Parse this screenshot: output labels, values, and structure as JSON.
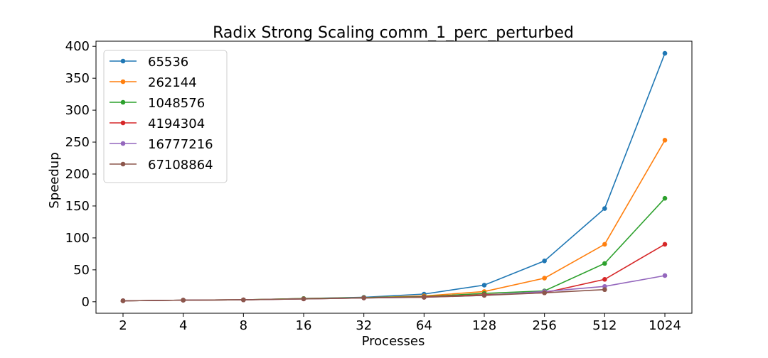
{
  "chart_data": {
    "type": "line",
    "title": "Radix Strong Scaling comm_1_perc_perturbed",
    "xlabel": "Processes",
    "ylabel": "Speedup",
    "categories": [
      "2",
      "4",
      "8",
      "16",
      "32",
      "64",
      "128",
      "256",
      "512",
      "1024"
    ],
    "ylim": [
      -18,
      408
    ],
    "yticks": [
      0,
      50,
      100,
      150,
      200,
      250,
      300,
      350,
      400
    ],
    "grid": false,
    "legend_position": "top-left",
    "series": [
      {
        "name": "65536",
        "color": "#1f77b4",
        "values": [
          1.5,
          2.5,
          3,
          5,
          7,
          12,
          26,
          64,
          146,
          389
        ]
      },
      {
        "name": "262144",
        "color": "#ff7f0e",
        "values": [
          1.5,
          2.5,
          3,
          5,
          6.5,
          9,
          16,
          37,
          90,
          253
        ]
      },
      {
        "name": "1048576",
        "color": "#2ca02c",
        "values": [
          1.5,
          2.5,
          3,
          5,
          6.5,
          8,
          13,
          17,
          60,
          162
        ]
      },
      {
        "name": "4194304",
        "color": "#d62728",
        "values": [
          1.5,
          2.5,
          3,
          4.5,
          6,
          7.5,
          11,
          14,
          35,
          90
        ]
      },
      {
        "name": "16777216",
        "color": "#9467bd",
        "values": [
          1.5,
          2.5,
          3,
          4.5,
          6,
          7,
          10,
          16,
          24,
          41
        ]
      },
      {
        "name": "67108864",
        "color": "#8c564b",
        "values": [
          1.5,
          2.5,
          3,
          4.5,
          6,
          7,
          10,
          14,
          19,
          null
        ]
      }
    ]
  }
}
